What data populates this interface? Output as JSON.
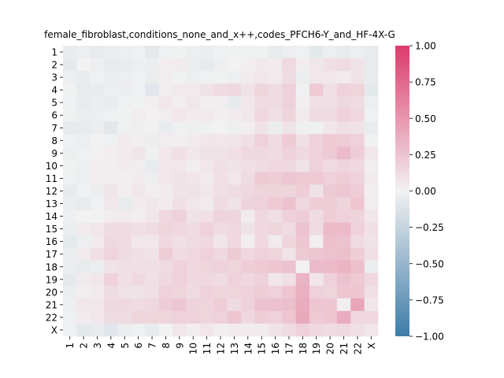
{
  "chart_data": {
    "type": "heatmap",
    "title": "female_fibroblast,conditions_none_and_x++,codes_PFCH6-Y_and_HF-4X-G",
    "row_labels": [
      "1",
      "2",
      "3",
      "4",
      "5",
      "6",
      "7",
      "8",
      "9",
      "10",
      "11",
      "12",
      "13",
      "14",
      "15",
      "16",
      "17",
      "18",
      "19",
      "20",
      "21",
      "22",
      "X"
    ],
    "col_labels": [
      "1",
      "2",
      "3",
      "4",
      "5",
      "6",
      "7",
      "8",
      "9",
      "10",
      "11",
      "12",
      "13",
      "14",
      "15",
      "16",
      "17",
      "18",
      "19",
      "20",
      "21",
      "22",
      "X"
    ],
    "vmin": -1.0,
    "vmax": 1.0,
    "colorbar_ticks": [
      "−1.00",
      "−0.75",
      "−0.50",
      "−0.25",
      "0.00",
      "0.25",
      "0.50",
      "0.75",
      "1.00"
    ],
    "colorbar_tick_values": [
      -1.0,
      -0.75,
      -0.5,
      -0.25,
      0.0,
      0.25,
      0.5,
      0.75,
      1.0
    ],
    "colors": {
      "low": "#3d7ca8",
      "mid": "#f2f2f2",
      "high": "#dc3b6b"
    },
    "values": [
      [
        -0.05,
        -0.03,
        -0.06,
        -0.04,
        -0.03,
        -0.02,
        -0.08,
        -0.02,
        -0.01,
        -0.03,
        -0.04,
        -0.02,
        -0.01,
        -0.02,
        -0.01,
        -0.06,
        -0.03,
        -0.02,
        -0.08,
        -0.03,
        -0.05,
        -0.03,
        -0.06
      ],
      [
        -0.07,
        0.0,
        -0.03,
        -0.06,
        -0.05,
        -0.03,
        -0.04,
        0.02,
        0.04,
        -0.04,
        -0.06,
        -0.03,
        0.0,
        0.02,
        0.05,
        0.04,
        0.14,
        0.03,
        0.06,
        0.1,
        0.12,
        0.08,
        -0.06
      ],
      [
        -0.03,
        -0.05,
        -0.02,
        -0.04,
        -0.03,
        -0.02,
        -0.04,
        0.03,
        -0.01,
        -0.03,
        -0.02,
        -0.01,
        -0.03,
        0.04,
        0.06,
        0.05,
        0.12,
        -0.04,
        0.06,
        0.06,
        0.04,
        0.08,
        -0.05
      ],
      [
        -0.01,
        -0.06,
        -0.05,
        -0.03,
        -0.04,
        -0.02,
        -0.1,
        0.03,
        0.05,
        0.05,
        0.08,
        0.12,
        0.14,
        0.08,
        0.16,
        0.12,
        0.18,
        -0.02,
        0.22,
        0.1,
        0.18,
        0.16,
        -0.08
      ],
      [
        -0.02,
        -0.05,
        -0.04,
        -0.05,
        -0.02,
        -0.01,
        0.02,
        0.06,
        0.02,
        0.06,
        0.02,
        0.02,
        -0.06,
        0.06,
        0.12,
        0.12,
        0.18,
        0.02,
        0.1,
        0.1,
        0.14,
        0.12,
        -0.03
      ],
      [
        -0.01,
        -0.04,
        -0.03,
        -0.02,
        -0.01,
        0.03,
        0.01,
        0.03,
        0.06,
        0.04,
        0.05,
        0.02,
        0.04,
        0.06,
        0.14,
        0.1,
        0.16,
        0.05,
        0.12,
        0.12,
        0.18,
        0.14,
        -0.02
      ],
      [
        -0.07,
        -0.05,
        -0.04,
        -0.09,
        -0.02,
        -0.03,
        -0.01,
        -0.05,
        -0.02,
        -0.03,
        -0.02,
        0.0,
        -0.03,
        0.02,
        0.08,
        -0.04,
        0.08,
        -0.02,
        -0.02,
        0.06,
        0.1,
        0.08,
        -0.05
      ],
      [
        -0.02,
        -0.03,
        0.0,
        -0.02,
        0.04,
        0.02,
        -0.04,
        0.02,
        0.02,
        0.04,
        0.06,
        0.06,
        0.07,
        0.1,
        0.18,
        0.12,
        0.22,
        0.1,
        0.18,
        0.22,
        0.2,
        0.18,
        -0.01
      ],
      [
        -0.03,
        -0.02,
        0.01,
        0.02,
        0.04,
        0.07,
        -0.02,
        0.06,
        0.1,
        0.06,
        0.09,
        0.08,
        0.1,
        0.14,
        0.14,
        0.12,
        0.18,
        0.14,
        0.18,
        0.22,
        0.3,
        0.2,
        0.06
      ],
      [
        -0.01,
        -0.03,
        0.02,
        0.02,
        0.04,
        0.03,
        -0.06,
        0.06,
        0.06,
        0.02,
        0.06,
        0.1,
        0.08,
        0.1,
        0.12,
        0.14,
        0.14,
        0.08,
        0.18,
        0.12,
        0.16,
        0.14,
        0.02
      ],
      [
        -0.02,
        -0.03,
        0.03,
        0.02,
        0.02,
        0.04,
        -0.03,
        0.06,
        0.08,
        0.07,
        0.04,
        0.1,
        0.06,
        0.12,
        0.22,
        0.2,
        0.24,
        0.22,
        0.22,
        0.18,
        0.2,
        0.18,
        0.04
      ],
      [
        -0.06,
        -0.02,
        -0.04,
        0.07,
        0.02,
        0.06,
        0.02,
        0.04,
        0.08,
        0.09,
        0.06,
        0.1,
        0.12,
        0.14,
        0.16,
        0.16,
        0.16,
        0.2,
        0.08,
        0.22,
        0.24,
        0.2,
        0.02
      ],
      [
        -0.04,
        -0.06,
        -0.02,
        0.06,
        -0.06,
        0.04,
        0.06,
        0.04,
        0.1,
        0.06,
        0.04,
        0.12,
        0.08,
        0.16,
        0.18,
        0.22,
        0.26,
        0.14,
        0.2,
        0.2,
        0.16,
        0.24,
        0.03
      ],
      [
        -0.02,
        0.0,
        0.0,
        0.03,
        0.04,
        0.02,
        0.06,
        0.14,
        0.18,
        0.08,
        0.1,
        0.16,
        0.16,
        0.04,
        0.14,
        0.1,
        0.18,
        0.2,
        0.12,
        0.2,
        0.18,
        0.16,
        0.06
      ],
      [
        -0.04,
        0.04,
        0.06,
        0.12,
        0.12,
        0.1,
        0.12,
        0.16,
        0.14,
        0.12,
        0.18,
        0.12,
        0.14,
        0.08,
        0.14,
        0.16,
        0.12,
        0.26,
        0.12,
        0.3,
        0.3,
        0.18,
        0.1
      ],
      [
        -0.07,
        -0.03,
        0.04,
        0.14,
        0.12,
        0.06,
        0.06,
        0.14,
        0.1,
        0.12,
        0.14,
        0.06,
        0.14,
        0.02,
        0.14,
        0.04,
        0.16,
        0.24,
        0.02,
        0.28,
        0.26,
        0.12,
        0.08
      ],
      [
        -0.04,
        0.04,
        0.1,
        0.16,
        0.12,
        0.1,
        0.08,
        0.2,
        0.12,
        0.14,
        0.18,
        0.14,
        0.22,
        0.14,
        0.18,
        0.16,
        0.08,
        0.22,
        0.24,
        0.26,
        0.28,
        0.2,
        0.1
      ],
      [
        -0.04,
        -0.06,
        -0.04,
        0.08,
        0.1,
        0.1,
        0.1,
        0.12,
        0.18,
        0.14,
        0.16,
        0.18,
        0.16,
        0.2,
        0.22,
        0.24,
        0.26,
        0.0,
        0.3,
        0.3,
        0.34,
        0.28,
        -0.04
      ],
      [
        -0.08,
        0.04,
        0.06,
        0.18,
        0.1,
        0.14,
        0.1,
        0.14,
        0.18,
        0.14,
        0.14,
        0.12,
        0.18,
        0.14,
        0.18,
        0.06,
        0.1,
        0.34,
        0.06,
        0.18,
        0.26,
        0.22,
        0.14
      ],
      [
        -0.04,
        0.02,
        0.04,
        0.12,
        0.08,
        0.08,
        0.1,
        0.18,
        0.16,
        0.12,
        0.18,
        0.16,
        0.16,
        0.18,
        0.2,
        0.18,
        0.24,
        0.36,
        0.18,
        0.16,
        0.24,
        0.24,
        0.1
      ],
      [
        -0.03,
        0.06,
        0.06,
        0.14,
        0.14,
        0.12,
        0.14,
        0.2,
        0.24,
        0.16,
        0.16,
        0.2,
        0.12,
        0.18,
        0.26,
        0.26,
        0.28,
        0.38,
        0.24,
        0.24,
        0.02,
        0.42,
        0.06
      ],
      [
        -0.02,
        0.04,
        0.06,
        0.12,
        0.12,
        0.16,
        0.16,
        0.16,
        0.18,
        0.18,
        0.16,
        0.18,
        0.24,
        0.14,
        0.2,
        0.18,
        0.24,
        0.4,
        0.22,
        0.24,
        0.38,
        0.14,
        0.14
      ],
      [
        -0.02,
        -0.08,
        -0.06,
        -0.1,
        -0.04,
        -0.02,
        -0.06,
        0.0,
        0.06,
        0.02,
        0.06,
        0.02,
        0.04,
        0.04,
        0.04,
        0.08,
        0.12,
        0.18,
        0.14,
        0.12,
        0.14,
        0.1,
        0.06
      ]
    ]
  }
}
